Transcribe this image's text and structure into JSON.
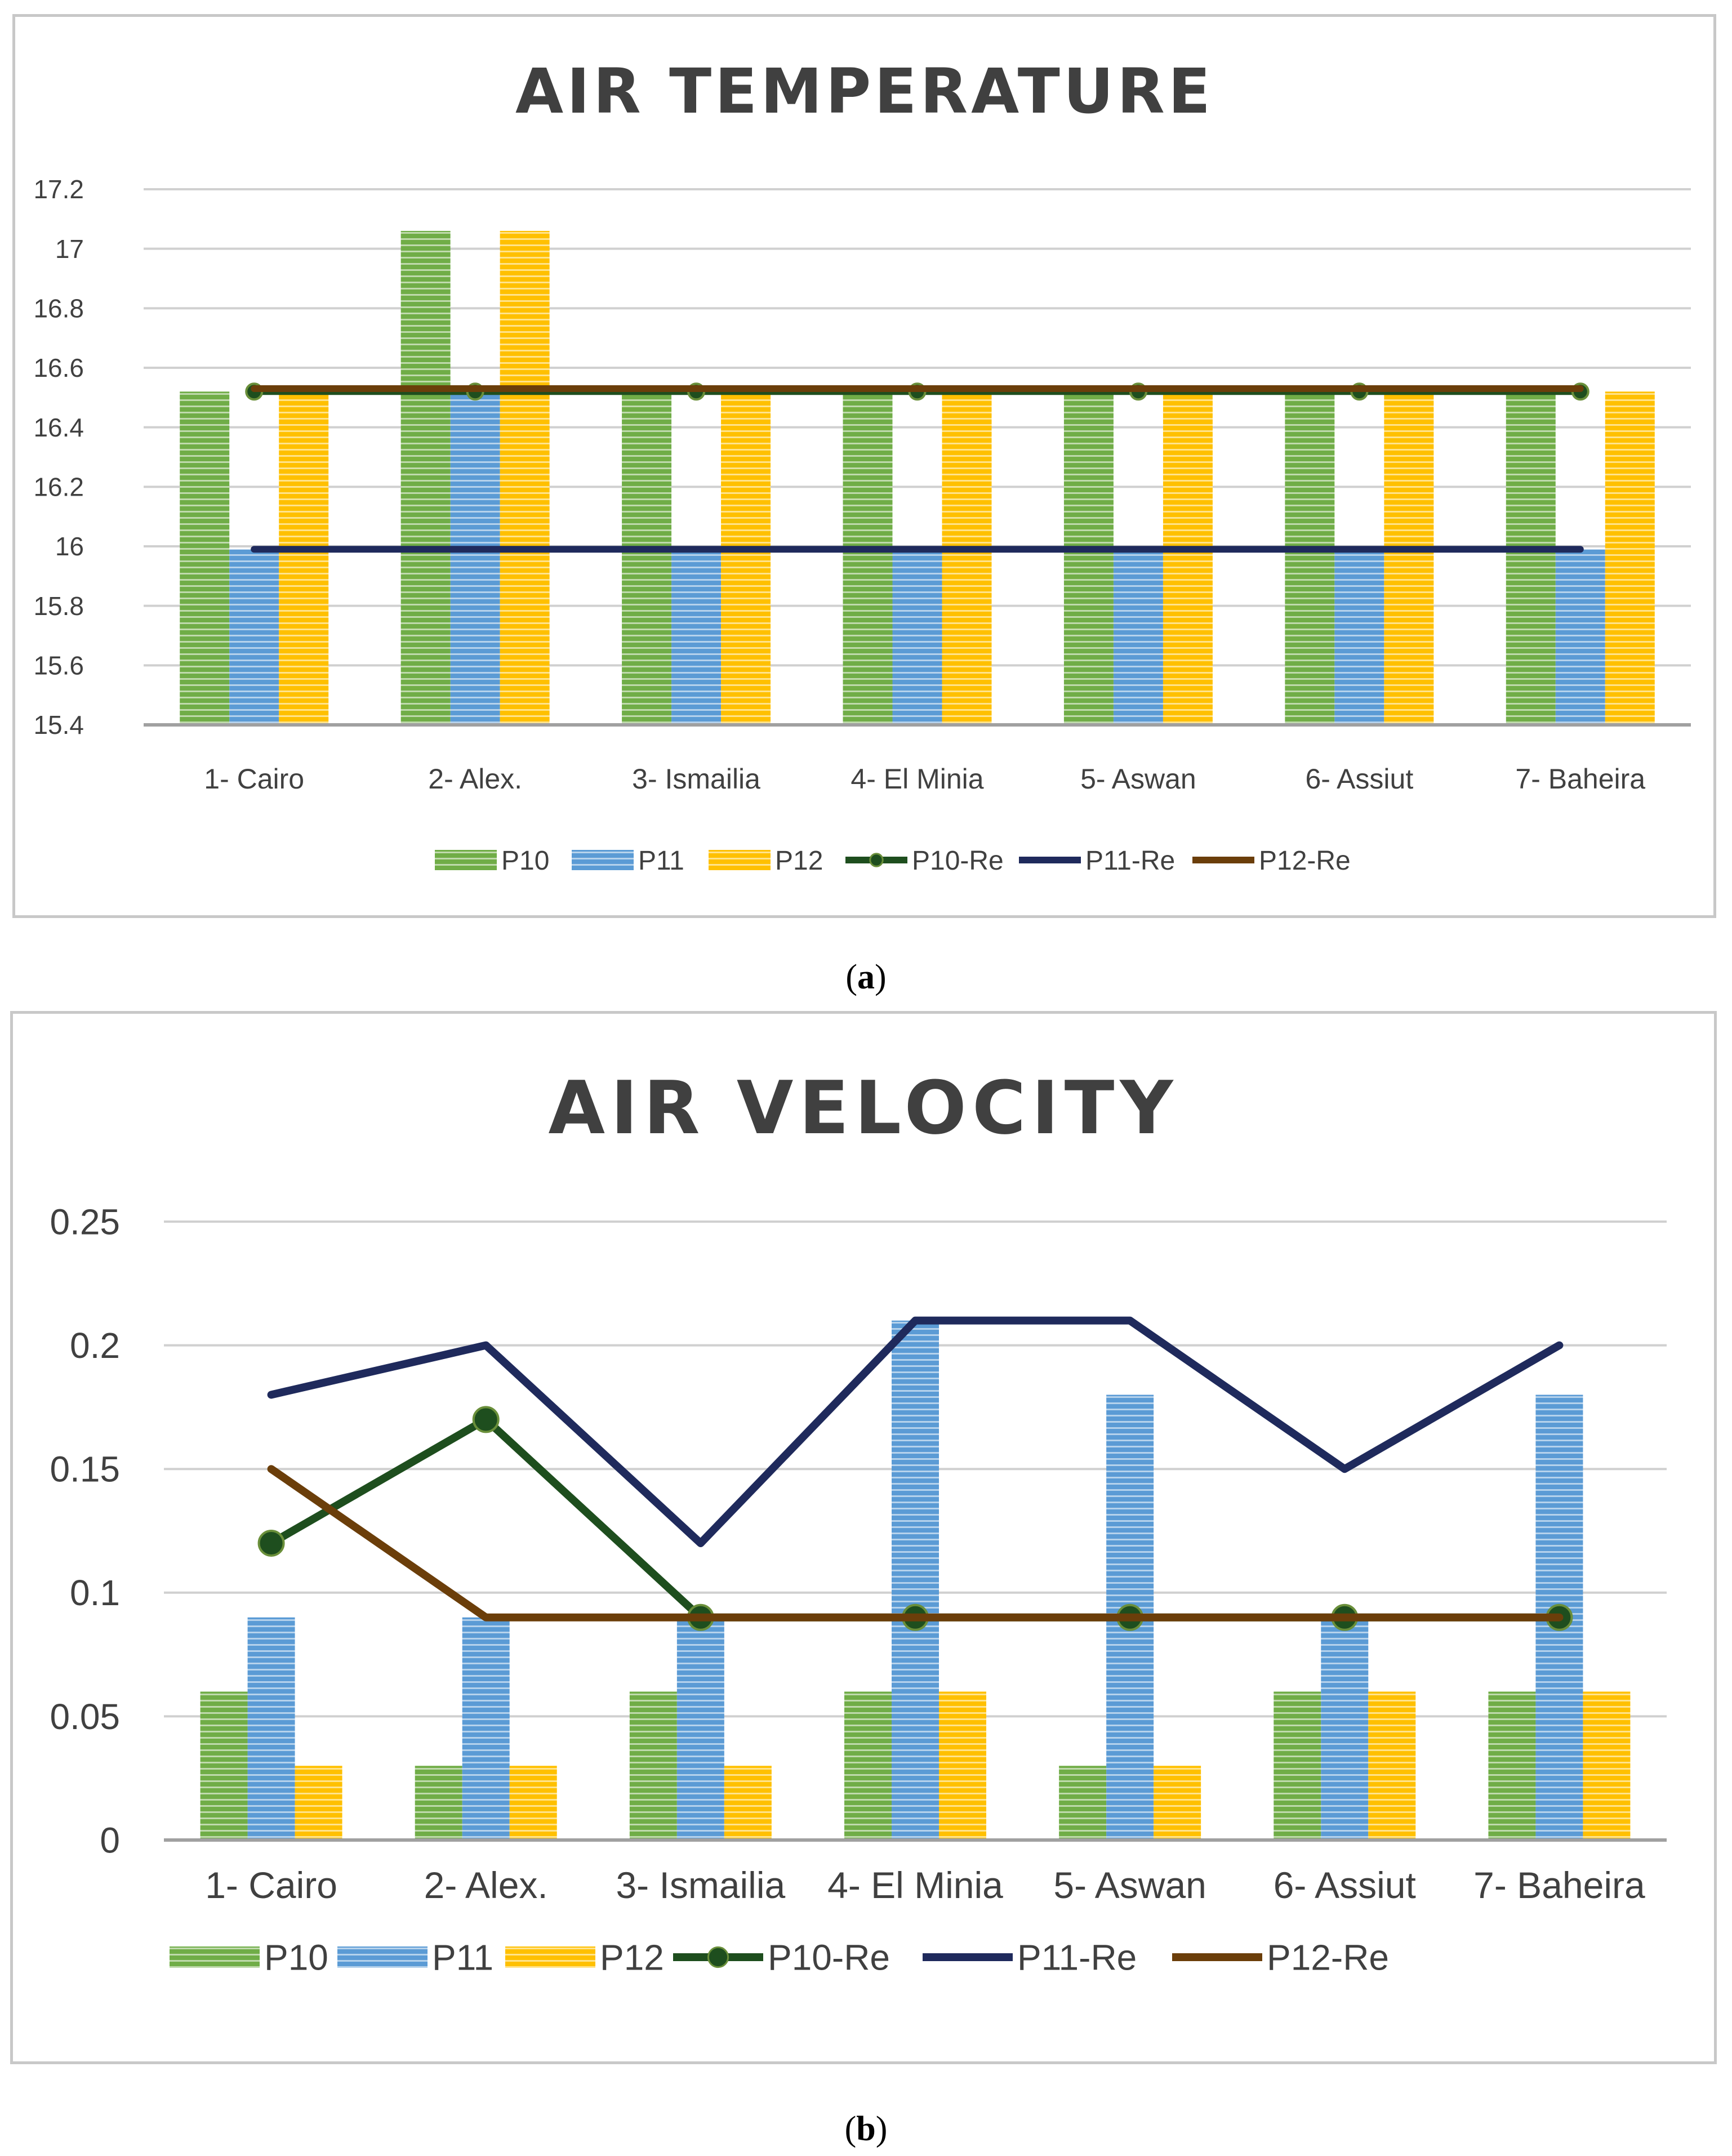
{
  "chart_data": [
    {
      "type": "bar",
      "title": "AIR TEMPERATURE",
      "xlabel": "",
      "ylabel": "",
      "ylim": [
        15.4,
        17.2
      ],
      "yticks": [
        "17.2",
        "17",
        "16.8",
        "16.6",
        "16.4",
        "16.2",
        "16",
        "15.8",
        "15.6",
        "15.4"
      ],
      "ytick_values": [
        17.2,
        17.0,
        16.8,
        16.6,
        16.4,
        16.2,
        16.0,
        15.8,
        15.6,
        15.4
      ],
      "grid": true,
      "legend_position": "bottom",
      "categories": [
        "1- Cairo",
        "2- Alex.",
        "3- Ismailia",
        "4- El Minia",
        "5- Aswan",
        "6- Assiut",
        "7- Baheira"
      ],
      "series": [
        {
          "name": "P10",
          "kind": "bar",
          "color": "#70ad47",
          "values": [
            16.52,
            17.06,
            16.52,
            16.52,
            16.52,
            16.52,
            16.52
          ]
        },
        {
          "name": "P11",
          "kind": "bar",
          "color": "#5b9bd5",
          "values": [
            15.99,
            16.52,
            15.99,
            15.99,
            15.99,
            15.99,
            15.99
          ]
        },
        {
          "name": "P12",
          "kind": "bar",
          "color": "#ffc000",
          "values": [
            16.52,
            17.06,
            16.52,
            16.52,
            16.52,
            16.52,
            16.52
          ]
        },
        {
          "name": "P10-Re",
          "kind": "line",
          "markers": true,
          "color": "#1e4e1e",
          "values": [
            16.52,
            16.52,
            16.52,
            16.52,
            16.52,
            16.52,
            16.52
          ]
        },
        {
          "name": "P11-Re",
          "kind": "line",
          "markers": false,
          "color": "#1f2a5c",
          "values": [
            15.99,
            15.99,
            15.99,
            15.99,
            15.99,
            15.99,
            15.99
          ]
        },
        {
          "name": "P12-Re",
          "kind": "line",
          "markers": false,
          "color": "#6b3e0a",
          "values": [
            16.53,
            16.53,
            16.53,
            16.53,
            16.53,
            16.53,
            16.53
          ]
        }
      ],
      "caption": "a"
    },
    {
      "type": "bar",
      "title": "AIR VELOCITY",
      "xlabel": "",
      "ylabel": "",
      "ylim": [
        0,
        0.25
      ],
      "yticks": [
        "0.25",
        "0.2",
        "0.15",
        "0.1",
        "0.05",
        "0"
      ],
      "ytick_values": [
        0.25,
        0.2,
        0.15,
        0.1,
        0.05,
        0
      ],
      "grid": true,
      "legend_position": "bottom",
      "categories": [
        "1- Cairo",
        "2- Alex.",
        "3- Ismailia",
        "4- El Minia",
        "5- Aswan",
        "6- Assiut",
        "7- Baheira"
      ],
      "series": [
        {
          "name": "P10",
          "kind": "bar",
          "color": "#70ad47",
          "values": [
            0.06,
            0.03,
            0.06,
            0.06,
            0.03,
            0.06,
            0.06
          ]
        },
        {
          "name": "P11",
          "kind": "bar",
          "color": "#5b9bd5",
          "values": [
            0.09,
            0.09,
            0.09,
            0.21,
            0.18,
            0.09,
            0.18
          ]
        },
        {
          "name": "P12",
          "kind": "bar",
          "color": "#ffc000",
          "values": [
            0.03,
            0.03,
            0.03,
            0.06,
            0.03,
            0.06,
            0.06
          ]
        },
        {
          "name": "P10-Re",
          "kind": "line",
          "markers": true,
          "color": "#1e4e1e",
          "values": [
            0.12,
            0.17,
            0.09,
            0.09,
            0.09,
            0.09,
            0.09
          ]
        },
        {
          "name": "P11-Re",
          "kind": "line",
          "markers": false,
          "color": "#1f2a5c",
          "values": [
            0.18,
            0.2,
            0.12,
            0.21,
            0.21,
            0.15,
            0.2
          ]
        },
        {
          "name": "P12-Re",
          "kind": "line",
          "markers": false,
          "color": "#6b3e0a",
          "values": [
            0.15,
            0.09,
            0.09,
            0.09,
            0.09,
            0.09,
            0.09
          ]
        }
      ],
      "caption": "b"
    }
  ]
}
